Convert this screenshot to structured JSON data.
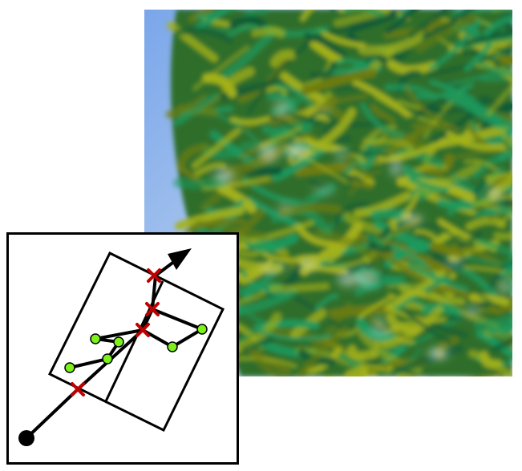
{
  "figure": {
    "render_panel": {
      "content": "volume-rendering",
      "colors": {
        "sky": "#8db4e8",
        "dark_green": "#0f5a36",
        "teal_green": "#1d9a5e",
        "yellow_green": "#a4b21a",
        "olive": "#6f7d10",
        "highlight": "#e9f2ee"
      }
    },
    "inset_diagram": {
      "colors": {
        "frame": "#000000",
        "cell_boundary": "#000000",
        "ray": "#000000",
        "cell_intersection_marker": "#c00000",
        "sample_point": "#7cf21a",
        "ray_origin": "#000000"
      },
      "marker_glyph": "x-cross",
      "sample_glyph": "circle",
      "origin_glyph": "filled-circle",
      "arrow_glyph": "arrowhead"
    }
  }
}
